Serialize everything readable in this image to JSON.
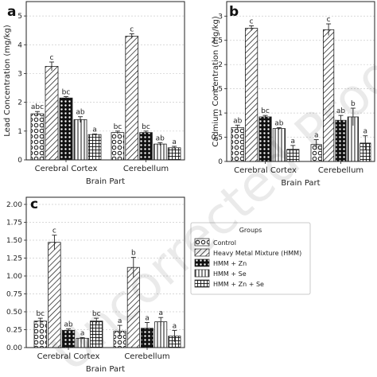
{
  "chart_data": [
    {
      "type": "bar",
      "panel_label": "a",
      "xlabel": "Brain Part",
      "ylabel": "Lead Concentration (mg/kg)",
      "ylim": [
        0,
        5.5
      ],
      "yticks": [
        0,
        1,
        2,
        3,
        4,
        5
      ],
      "grid": true,
      "categories": [
        "Cerebral Cortex",
        "Cerebellum"
      ],
      "series": [
        {
          "name": "Control",
          "values": [
            1.6,
            0.95
          ],
          "errors": [
            0.08,
            0.05
          ],
          "labels": [
            "abc",
            "bc"
          ]
        },
        {
          "name": "Heavy Metal Mixture (HMM)",
          "values": [
            3.25,
            4.3
          ],
          "errors": [
            0.15,
            0.08
          ],
          "labels": [
            "c",
            "c"
          ]
        },
        {
          "name": "HMM + Zn",
          "values": [
            2.15,
            0.95
          ],
          "errors": [
            0.05,
            0.05
          ],
          "labels": [
            "bc",
            "bc"
          ]
        },
        {
          "name": "HMM + Se",
          "values": [
            1.4,
            0.55
          ],
          "errors": [
            0.1,
            0.05
          ],
          "labels": [
            "ab",
            "ab"
          ]
        },
        {
          "name": "HMM + Zn + Se",
          "values": [
            0.88,
            0.42
          ],
          "errors": [
            0.02,
            0.05
          ],
          "labels": [
            "a",
            "a"
          ]
        }
      ]
    },
    {
      "type": "bar",
      "panel_label": "b",
      "xlabel": "Brain Part",
      "ylabel": "Cadmium Concentration (mg/kg)",
      "ylim": [
        0,
        3.3
      ],
      "yticks": [
        0.0,
        0.5,
        1.0,
        1.5,
        2.0,
        2.5,
        3.0
      ],
      "grid": true,
      "categories": [
        "Cerebral Cortex",
        "Cerebellum"
      ],
      "series": [
        {
          "name": "Control",
          "values": [
            0.7,
            0.35
          ],
          "errors": [
            0.05,
            0.1
          ],
          "labels": [
            "ab",
            "a"
          ]
        },
        {
          "name": "Heavy Metal Mixture (HMM)",
          "values": [
            2.75,
            2.72
          ],
          "errors": [
            0.05,
            0.12
          ],
          "labels": [
            "c",
            "c"
          ]
        },
        {
          "name": "HMM + Zn",
          "values": [
            0.92,
            0.85
          ],
          "errors": [
            0.03,
            0.1
          ],
          "labels": [
            "bc",
            "ab"
          ]
        },
        {
          "name": "HMM + Se",
          "values": [
            0.68,
            0.92
          ],
          "errors": [
            0.02,
            0.18
          ],
          "labels": [
            "ab",
            "b"
          ]
        },
        {
          "name": "HMM + Zn + Se",
          "values": [
            0.25,
            0.38
          ],
          "errors": [
            0.08,
            0.15
          ],
          "labels": [
            "a",
            "a"
          ]
        }
      ]
    },
    {
      "type": "bar",
      "panel_label": "c",
      "xlabel": "Brain Part",
      "ylabel": "",
      "ylim": [
        0,
        2.1
      ],
      "yticks": [
        0.0,
        0.25,
        0.5,
        0.75,
        1.0,
        1.25,
        1.5,
        1.75,
        2.0
      ],
      "ytick_labels": [
        "0.00",
        "0.25",
        "0.50",
        "0.75",
        "1.00",
        "1.25",
        "1.50",
        "1.75",
        "2.00"
      ],
      "grid": true,
      "categories": [
        "Cerebral Cortex",
        "Cerebellum"
      ],
      "series": [
        {
          "name": "Control",
          "values": [
            0.37,
            0.23
          ],
          "errors": [
            0.04,
            0.08
          ],
          "labels": [
            "bc",
            "a"
          ]
        },
        {
          "name": "Heavy Metal Mixture (HMM)",
          "values": [
            1.47,
            1.12
          ],
          "errors": [
            0.1,
            0.14
          ],
          "labels": [
            "c",
            "b"
          ]
        },
        {
          "name": "HMM + Zn",
          "values": [
            0.24,
            0.27
          ],
          "errors": [
            0.02,
            0.08
          ],
          "labels": [
            "ab",
            "a"
          ]
        },
        {
          "name": "HMM + Se",
          "values": [
            0.13,
            0.36
          ],
          "errors": [
            0.01,
            0.06
          ],
          "labels": [
            "a",
            "a"
          ]
        },
        {
          "name": "HMM + Zn + Se",
          "values": [
            0.37,
            0.16
          ],
          "errors": [
            0.04,
            0.08
          ],
          "labels": [
            "bc",
            "a"
          ]
        }
      ],
      "legend": {
        "title": "Groups",
        "placement": "right",
        "entries": [
          "Control",
          "Heavy Metal Mixture (HMM)",
          "HMM + Zn",
          "HMM + Se",
          "HMM + Zn + Se"
        ]
      }
    }
  ],
  "patterns": [
    "circles",
    "diagonal",
    "dots",
    "vertical",
    "grid"
  ],
  "watermark": "Uncorrected Proof"
}
